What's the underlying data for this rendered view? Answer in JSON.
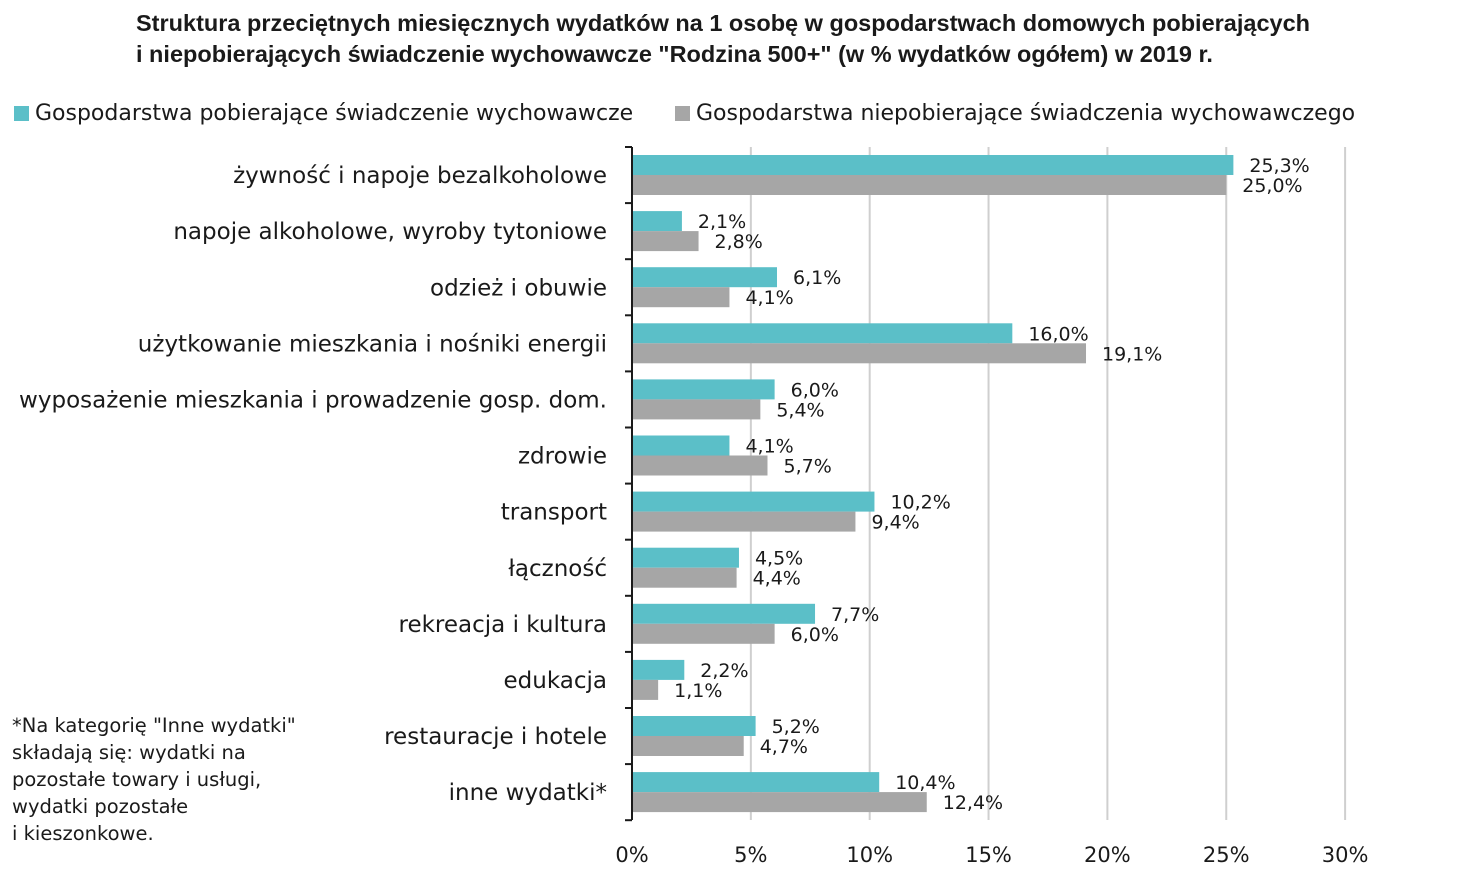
{
  "chart_data": {
    "type": "bar",
    "orientation": "horizontal",
    "title_lines": [
      "Struktura przeciętnych miesięcznych wydatków na 1 osobę w gospodarstwach domowych pobierających",
      "i niepobierających świadczenie wychowawcze \"Rodzina 500+\" (w % wydatków ogółem) w 2019 r."
    ],
    "categories": [
      "żywność i napoje bezalkoholowe",
      "napoje alkoholowe, wyroby tytoniowe",
      "odzież i obuwie",
      "użytkowanie mieszkania i nośniki energii",
      "wyposażenie mieszkania i prowadzenie gosp. dom.",
      "zdrowie",
      "transport",
      "łączność",
      "rekreacja i kultura",
      "edukacja",
      "restauracje i hotele",
      "inne wydatki*"
    ],
    "series": [
      {
        "name": "Gospodarstwa pobierające świadczenie wychowawcze",
        "color": "#5bbfc8",
        "values": [
          25.3,
          2.1,
          6.1,
          16.0,
          6.0,
          4.1,
          10.2,
          4.5,
          7.7,
          2.2,
          5.2,
          10.4
        ],
        "labels": [
          "25,3%",
          "2,1%",
          "6,1%",
          "16,0%",
          "6,0%",
          "4,1%",
          "10,2%",
          "4,5%",
          "7,7%",
          "2,2%",
          "5,2%",
          "10,4%"
        ]
      },
      {
        "name": "Gospodarstwa niepobierające świadczenia wychowawczego",
        "color": "#a6a6a6",
        "values": [
          25.0,
          2.8,
          4.1,
          19.1,
          5.4,
          5.7,
          9.4,
          4.4,
          6.0,
          1.1,
          4.7,
          12.4
        ],
        "labels": [
          "25,0%",
          "2,8%",
          "4,1%",
          "19,1%",
          "5,4%",
          "5,7%",
          "9,4%",
          "4,4%",
          "6,0%",
          "1,1%",
          "4,7%",
          "12,4%"
        ]
      }
    ],
    "xlim": [
      0,
      30
    ],
    "xticks": [
      0,
      5,
      10,
      15,
      20,
      25,
      30
    ],
    "xtick_labels": [
      "0%",
      "5%",
      "10%",
      "15%",
      "20%",
      "25%",
      "30%"
    ],
    "grid": true,
    "legend_position": "top",
    "footnote_lines": [
      "*Na kategorię \"Inne wydatki\"",
      "składają się: wydatki na",
      "pozostałe towary i usługi,",
      "wydatki pozostałe",
      "i kieszonkowe."
    ]
  }
}
